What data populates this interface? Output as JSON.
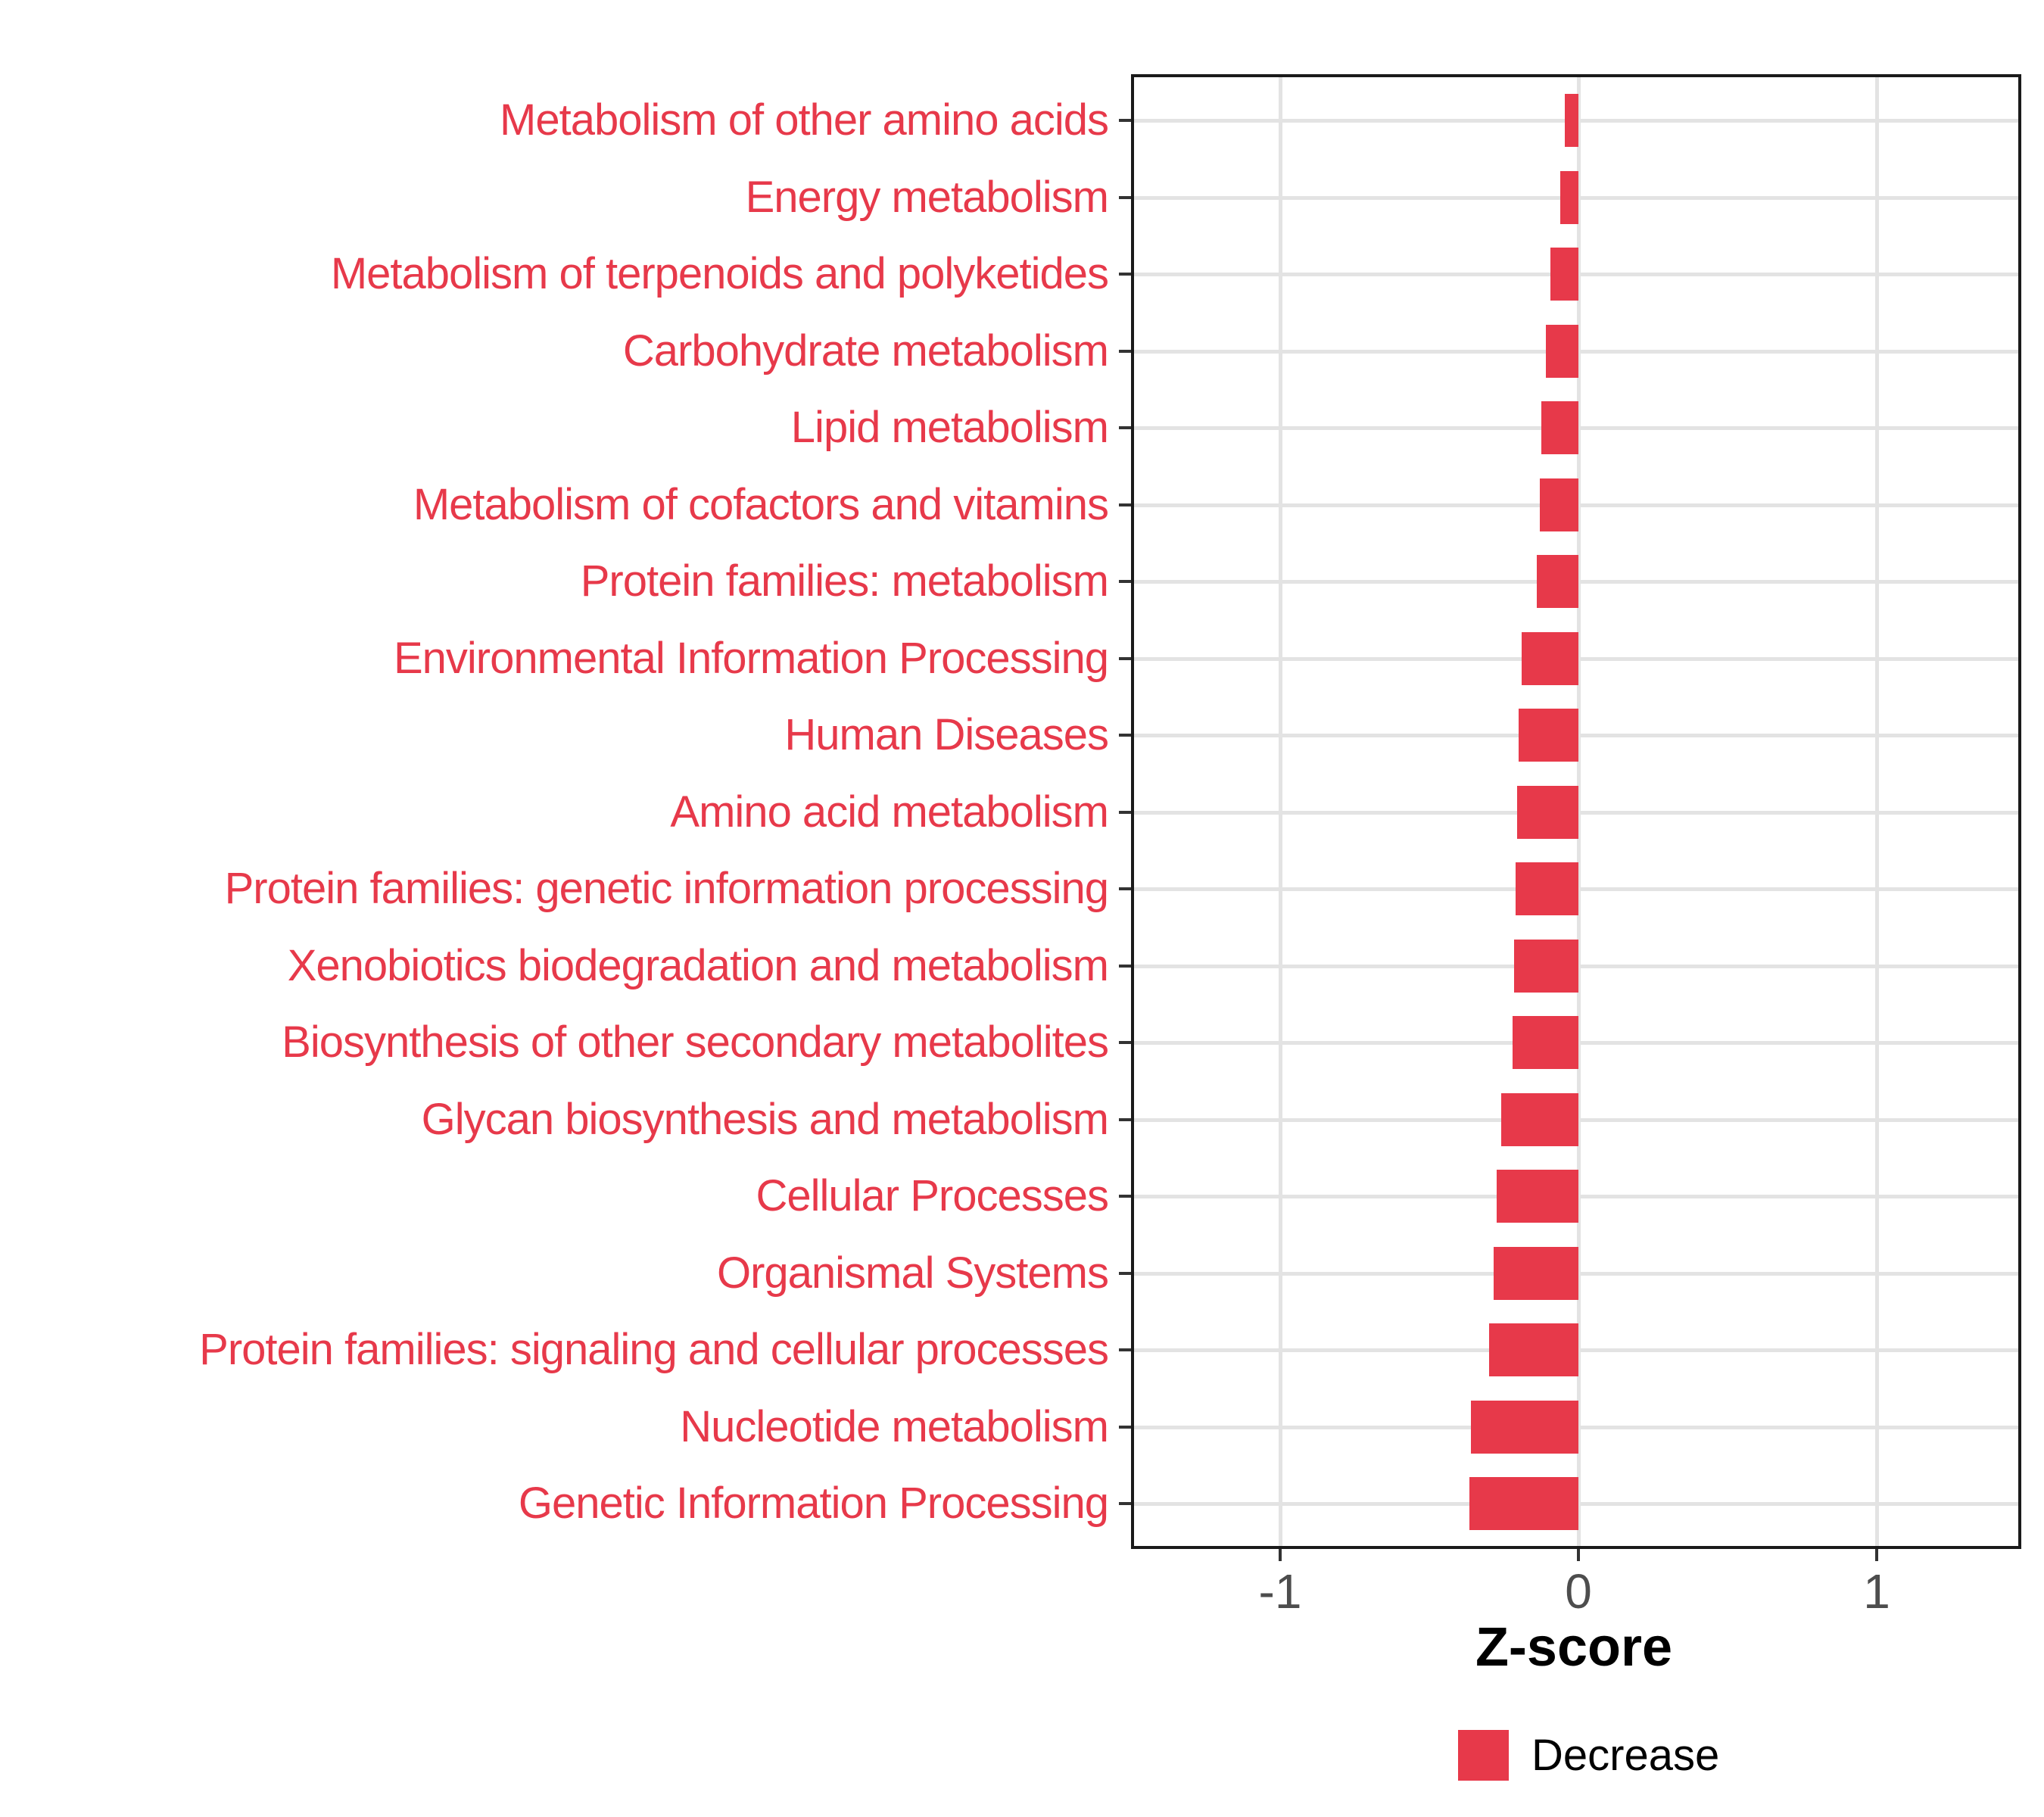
{
  "chart_data": {
    "type": "bar",
    "orientation": "horizontal",
    "categories": [
      "Metabolism of other amino acids",
      "Energy metabolism",
      "Metabolism of terpenoids and polyketides",
      "Carbohydrate metabolism",
      "Lipid metabolism",
      "Metabolism of cofactors and vitamins",
      "Protein families: metabolism",
      "Environmental Information Processing",
      "Human Diseases",
      "Amino acid metabolism",
      "Protein families: genetic information processing",
      "Xenobiotics biodegradation and metabolism",
      "Biosynthesis of other secondary metabolites",
      "Glycan biosynthesis and metabolism",
      "Cellular Processes",
      "Organismal Systems",
      "Protein families: signaling and cellular processes",
      "Nucleotide metabolism",
      "Genetic Information Processing"
    ],
    "values": [
      -0.045,
      -0.06,
      -0.095,
      -0.11,
      -0.125,
      -0.13,
      -0.14,
      -0.19,
      -0.2,
      -0.205,
      -0.21,
      -0.215,
      -0.22,
      -0.26,
      -0.275,
      -0.285,
      -0.3,
      -0.36,
      -0.365
    ],
    "series": [
      {
        "name": "Decrease",
        "color": "#e7394a"
      }
    ],
    "title": "",
    "xlabel": "Z-score",
    "ylabel": "",
    "xlim": [
      -1.5,
      1.485
    ],
    "x_ticks": [
      {
        "label": "-1",
        "value": -1
      },
      {
        "label": "0",
        "value": 0
      },
      {
        "label": "1",
        "value": 1
      }
    ],
    "grid": "major",
    "legend_position": "bottom"
  },
  "axis": {
    "x_title": "Z-score"
  },
  "legend": {
    "label": "Decrease"
  },
  "colors": {
    "bar": "#e7394a",
    "category_text": "#e7394a",
    "grid": "#e3e3e3",
    "axis_tick_text": "#4d4d4d",
    "axis_title_text": "#000000",
    "panel_border": "#1a1a1a"
  }
}
